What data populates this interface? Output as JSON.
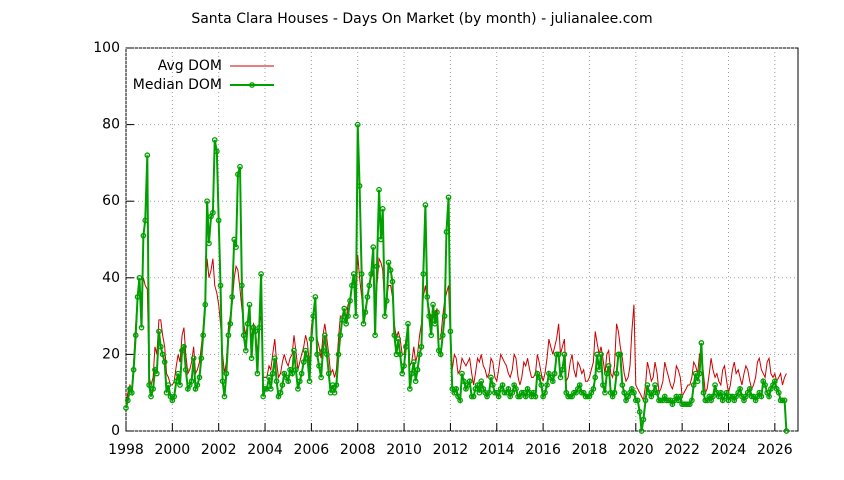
{
  "chart_data": {
    "type": "line",
    "title": "Santa Clara Houses - Days On Market (by month) - julianalee.com",
    "x": [
      1998,
      1998.08,
      1998.17,
      1998.25,
      1998.33,
      1998.42,
      1998.5,
      1998.58,
      1998.67,
      1998.75,
      1998.83,
      1998.92,
      1999,
      1999.08,
      1999.17,
      1999.25,
      1999.33,
      1999.42,
      1999.5,
      1999.58,
      1999.67,
      1999.75,
      1999.83,
      1999.92,
      2000,
      2000.08,
      2000.17,
      2000.25,
      2000.33,
      2000.42,
      2000.5,
      2000.58,
      2000.67,
      2000.75,
      2000.83,
      2000.92,
      2001,
      2001.08,
      2001.17,
      2001.25,
      2001.33,
      2001.42,
      2001.5,
      2001.58,
      2001.67,
      2001.75,
      2001.83,
      2001.92,
      2002,
      2002.08,
      2002.17,
      2002.25,
      2002.33,
      2002.42,
      2002.5,
      2002.58,
      2002.67,
      2002.75,
      2002.83,
      2002.92,
      2003,
      2003.08,
      2003.17,
      2003.25,
      2003.33,
      2003.42,
      2003.5,
      2003.58,
      2003.67,
      2003.75,
      2003.83,
      2003.92,
      2004,
      2004.08,
      2004.17,
      2004.25,
      2004.33,
      2004.42,
      2004.5,
      2004.58,
      2004.67,
      2004.75,
      2004.83,
      2004.92,
      2005,
      2005.08,
      2005.17,
      2005.25,
      2005.33,
      2005.42,
      2005.5,
      2005.58,
      2005.67,
      2005.75,
      2005.83,
      2005.92,
      2006,
      2006.08,
      2006.17,
      2006.25,
      2006.33,
      2006.42,
      2006.5,
      2006.58,
      2006.67,
      2006.75,
      2006.83,
      2006.92,
      2007,
      2007.08,
      2007.17,
      2007.25,
      2007.33,
      2007.42,
      2007.5,
      2007.58,
      2007.67,
      2007.75,
      2007.83,
      2007.92,
      2008,
      2008.08,
      2008.17,
      2008.25,
      2008.33,
      2008.42,
      2008.5,
      2008.58,
      2008.67,
      2008.75,
      2008.83,
      2008.92,
      2009,
      2009.08,
      2009.17,
      2009.25,
      2009.33,
      2009.42,
      2009.5,
      2009.58,
      2009.67,
      2009.75,
      2009.83,
      2009.92,
      2010,
      2010.08,
      2010.17,
      2010.25,
      2010.33,
      2010.42,
      2010.5,
      2010.58,
      2010.67,
      2010.75,
      2010.83,
      2010.92,
      2011,
      2011.08,
      2011.17,
      2011.25,
      2011.33,
      2011.42,
      2011.5,
      2011.58,
      2011.67,
      2011.75,
      2011.83,
      2011.92,
      2012,
      2012.08,
      2012.17,
      2012.25,
      2012.33,
      2012.42,
      2012.5,
      2012.58,
      2012.67,
      2012.75,
      2012.83,
      2012.92,
      2013,
      2013.08,
      2013.17,
      2013.25,
      2013.33,
      2013.42,
      2013.5,
      2013.58,
      2013.67,
      2013.75,
      2013.83,
      2013.92,
      2014,
      2014.08,
      2014.17,
      2014.25,
      2014.33,
      2014.42,
      2014.5,
      2014.58,
      2014.67,
      2014.75,
      2014.83,
      2014.92,
      2015,
      2015.08,
      2015.17,
      2015.25,
      2015.33,
      2015.42,
      2015.5,
      2015.58,
      2015.67,
      2015.75,
      2015.83,
      2015.92,
      2016,
      2016.08,
      2016.17,
      2016.25,
      2016.33,
      2016.42,
      2016.5,
      2016.58,
      2016.67,
      2016.75,
      2016.83,
      2016.92,
      2017,
      2017.08,
      2017.17,
      2017.25,
      2017.33,
      2017.42,
      2017.5,
      2017.58,
      2017.67,
      2017.75,
      2017.83,
      2017.92,
      2018,
      2018.08,
      2018.17,
      2018.25,
      2018.33,
      2018.42,
      2018.5,
      2018.58,
      2018.67,
      2018.75,
      2018.83,
      2018.92,
      2019,
      2019.08,
      2019.17,
      2019.25,
      2019.33,
      2019.42,
      2019.5,
      2019.58,
      2019.67,
      2019.75,
      2019.83,
      2019.92,
      2020,
      2020.08,
      2020.17,
      2020.25,
      2020.33,
      2020.42,
      2020.5,
      2020.58,
      2020.67,
      2020.75,
      2020.83,
      2020.92,
      2021,
      2021.08,
      2021.17,
      2021.25,
      2021.33,
      2021.42,
      2021.5,
      2021.58,
      2021.67,
      2021.75,
      2021.83,
      2021.92,
      2022,
      2022.08,
      2022.17,
      2022.25,
      2022.33,
      2022.42,
      2022.5,
      2022.58,
      2022.67,
      2022.75,
      2022.83,
      2022.92,
      2023,
      2023.08,
      2023.17,
      2023.25,
      2023.33,
      2023.42,
      2023.5,
      2023.58,
      2023.67,
      2023.75,
      2023.83,
      2023.92,
      2024,
      2024.08,
      2024.17,
      2024.25,
      2024.33,
      2024.42,
      2024.5,
      2024.58,
      2024.67,
      2024.75,
      2024.83,
      2024.92,
      2025,
      2025.08,
      2025.17,
      2025.25,
      2025.33,
      2025.42,
      2025.5,
      2025.58,
      2025.67,
      2025.75,
      2025.83,
      2025.92,
      2026,
      2026.08,
      2026.17,
      2026.25,
      2026.33,
      2026.42,
      2026.5
    ],
    "series": [
      {
        "name": "Avg DOM",
        "color": "#cc0000",
        "values": [
          7,
          10,
          12,
          11,
          18,
          28,
          35,
          38,
          35,
          40,
          38,
          37,
          14,
          12,
          14,
          22,
          20,
          29,
          29,
          25,
          22,
          15,
          14,
          12,
          12,
          13,
          17,
          20,
          18,
          25,
          27,
          20,
          15,
          16,
          18,
          22,
          15,
          16,
          18,
          22,
          27,
          35,
          45,
          40,
          42,
          45,
          38,
          36,
          33,
          28,
          20,
          15,
          18,
          27,
          30,
          33,
          40,
          43,
          42,
          37,
          32,
          28,
          25,
          28,
          30,
          24,
          28,
          27,
          20,
          28,
          30,
          14,
          14,
          14,
          17,
          16,
          20,
          24,
          18,
          14,
          15,
          18,
          20,
          18,
          17,
          19,
          20,
          25,
          21,
          16,
          18,
          20,
          22,
          25,
          23,
          17,
          27,
          31,
          33,
          24,
          22,
          19,
          25,
          28,
          24,
          20,
          15,
          16,
          14,
          16,
          24,
          30,
          30,
          32,
          29,
          33,
          34,
          38,
          40,
          33,
          46,
          40,
          35,
          30,
          32,
          35,
          38,
          40,
          42,
          30,
          38,
          45,
          44,
          42,
          32,
          35,
          38,
          38,
          35,
          28,
          24,
          26,
          24,
          20,
          20,
          24,
          27,
          17,
          18,
          22,
          18,
          20,
          25,
          28,
          35,
          38,
          34,
          32,
          28,
          33,
          30,
          32,
          24,
          24,
          30,
          34,
          36,
          38,
          24,
          16,
          20,
          19,
          15,
          16,
          19,
          18,
          17,
          18,
          19,
          15,
          12,
          15,
          19,
          18,
          20,
          17,
          16,
          14,
          15,
          19,
          18,
          14,
          13,
          16,
          20,
          19,
          18,
          17,
          15,
          14,
          16,
          20,
          19,
          14,
          12,
          14,
          18,
          17,
          19,
          16,
          14,
          14,
          15,
          20,
          18,
          15,
          13,
          15,
          19,
          24,
          22,
          20,
          22,
          24,
          28,
          20,
          22,
          24,
          13,
          14,
          18,
          20,
          16,
          14,
          18,
          17,
          15,
          16,
          13,
          13,
          14,
          16,
          18,
          26,
          23,
          20,
          22,
          19,
          15,
          20,
          21,
          15,
          14,
          17,
          28,
          26,
          22,
          19,
          15,
          13,
          14,
          17,
          26,
          33,
          12,
          11,
          10,
          9,
          8,
          12,
          18,
          16,
          13,
          14,
          18,
          15,
          10,
          11,
          13,
          18,
          16,
          14,
          12,
          11,
          13,
          17,
          16,
          14,
          9,
          10,
          11,
          12,
          12,
          14,
          18,
          17,
          15,
          20,
          21,
          15,
          10,
          11,
          15,
          19,
          16,
          14,
          15,
          13,
          12,
          16,
          17,
          13,
          10,
          12,
          16,
          18,
          15,
          16,
          14,
          12,
          15,
          17,
          16,
          13,
          11,
          12,
          14,
          18,
          19,
          16,
          15,
          14,
          18,
          19,
          15,
          14,
          15,
          13,
          14,
          15,
          12,
          14,
          15
        ]
      },
      {
        "name": "Median DOM",
        "color": "#00a000",
        "values": [
          6,
          8,
          11,
          10,
          16,
          25,
          35,
          40,
          27,
          51,
          55,
          72,
          12,
          9,
          11,
          16,
          15,
          26,
          22,
          20,
          18,
          10,
          12,
          9,
          8,
          9,
          13,
          15,
          12,
          21,
          22,
          16,
          11,
          12,
          13,
          19,
          11,
          12,
          14,
          19,
          25,
          33,
          60,
          49,
          56,
          57,
          76,
          73,
          55,
          38,
          13,
          9,
          15,
          25,
          28,
          35,
          50,
          48,
          67,
          69,
          38,
          25,
          21,
          28,
          33,
          19,
          27,
          26,
          15,
          27,
          41,
          9,
          11,
          11,
          14,
          11,
          15,
          19,
          13,
          9,
          10,
          12,
          15,
          14,
          13,
          16,
          15,
          21,
          16,
          11,
          13,
          15,
          18,
          21,
          19,
          13,
          24,
          30,
          35,
          20,
          17,
          14,
          21,
          25,
          20,
          15,
          10,
          12,
          10,
          12,
          20,
          25,
          29,
          32,
          28,
          30,
          34,
          38,
          41,
          30,
          80,
          64,
          41,
          28,
          31,
          35,
          38,
          41,
          48,
          25,
          43,
          63,
          50,
          58,
          30,
          34,
          44,
          42,
          39,
          25,
          20,
          24,
          20,
          15,
          17,
          22,
          28,
          11,
          15,
          18,
          13,
          16,
          20,
          22,
          41,
          59,
          35,
          30,
          25,
          33,
          28,
          31,
          21,
          20,
          25,
          30,
          52,
          61,
          26,
          11,
          10,
          11,
          9,
          8,
          15,
          13,
          11,
          12,
          13,
          9,
          9,
          11,
          12,
          10,
          13,
          11,
          10,
          9,
          10,
          14,
          12,
          10,
          10,
          9,
          11,
          12,
          10,
          10,
          11,
          9,
          10,
          12,
          11,
          9,
          9,
          10,
          10,
          9,
          11,
          10,
          9,
          10,
          9,
          15,
          14,
          12,
          9,
          10,
          12,
          15,
          14,
          13,
          15,
          20,
          20,
          14,
          16,
          20,
          10,
          9,
          9,
          9,
          10,
          10,
          11,
          12,
          10,
          10,
          9,
          9,
          9,
          10,
          11,
          14,
          20,
          16,
          20,
          12,
          10,
          15,
          17,
          10,
          9,
          10,
          15,
          20,
          20,
          12,
          10,
          8,
          9,
          10,
          11,
          10,
          8,
          8,
          5,
          0,
          3,
          8,
          12,
          10,
          9,
          10,
          12,
          10,
          8,
          8,
          8,
          9,
          8,
          8,
          8,
          7,
          8,
          9,
          8,
          9,
          7,
          7,
          7,
          7,
          7,
          8,
          12,
          15,
          13,
          15,
          23,
          10,
          8,
          8,
          9,
          8,
          9,
          12,
          10,
          9,
          10,
          8,
          9,
          10,
          8,
          9,
          9,
          8,
          9,
          10,
          11,
          9,
          8,
          9,
          10,
          11,
          9,
          9,
          8,
          9,
          10,
          9,
          13,
          12,
          10,
          9,
          11,
          12,
          13,
          11,
          10,
          8,
          8,
          8,
          0
        ],
        "markers": true
      }
    ],
    "xlim": [
      1998,
      2027
    ],
    "xticks": [
      1998,
      2000,
      2002,
      2004,
      2006,
      2008,
      2010,
      2012,
      2014,
      2016,
      2018,
      2020,
      2022,
      2024,
      2026
    ],
    "ylim": [
      0,
      100
    ],
    "yticks": [
      0,
      20,
      40,
      60,
      80,
      100
    ],
    "grid": true,
    "legend": "top-left"
  }
}
